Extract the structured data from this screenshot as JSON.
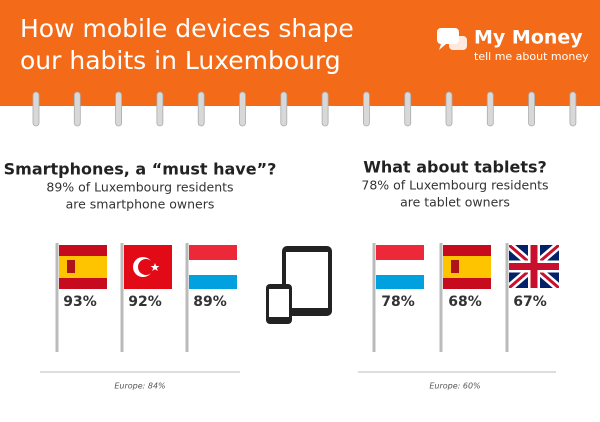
{
  "header": {
    "title_lines": [
      "How mobile devices shape",
      "our habits in Luxembourg"
    ],
    "logo": {
      "name": "My Money",
      "tagline": "tell me about money"
    }
  },
  "sections": [
    {
      "title": "Smartphones, a “must have”?",
      "subtitle_lines": [
        "89% of Luxembourg residents",
        "are smartphone owners"
      ],
      "values": [
        "93%",
        "92%",
        "89%"
      ],
      "note": "Europe: 84%"
    },
    {
      "title": "What about tablets?",
      "subtitle_lines": [
        "78% of Luxembourg residents",
        "are tablet owners"
      ],
      "values": [
        "78%",
        "68%",
        "67%"
      ],
      "note": "Europe: 60%"
    }
  ]
}
